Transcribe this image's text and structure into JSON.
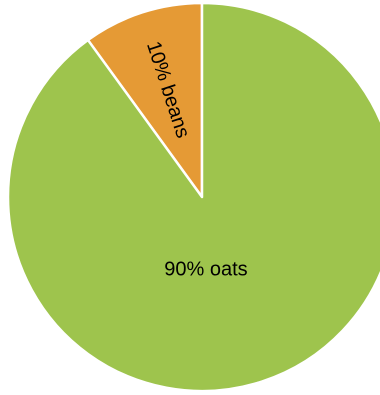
{
  "chart_data": {
    "type": "pie",
    "slices": [
      {
        "label": "beans",
        "value": 10,
        "data_label": "10% beans",
        "color": "#e59a35"
      },
      {
        "label": "oats",
        "value": 90,
        "data_label": "90% oats",
        "color": "#9ec44d"
      }
    ],
    "slice_border_color": "#ffffff",
    "legend": "none"
  }
}
